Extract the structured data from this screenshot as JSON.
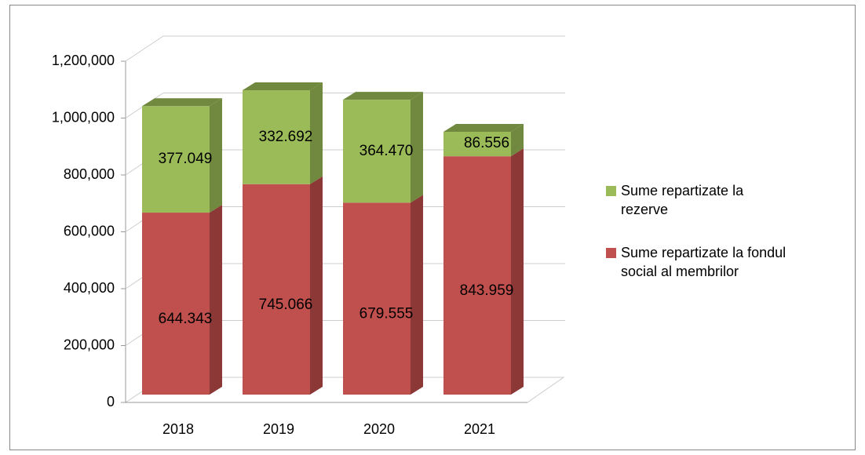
{
  "chart_data": {
    "type": "bar3d_stacked",
    "categories": [
      "2018",
      "2019",
      "2020",
      "2021"
    ],
    "series": [
      {
        "name": "Sume repartizate la fondul social al membrilor",
        "color": "#c0504d",
        "side_color": "#8c3836",
        "values": [
          644343,
          745066,
          679555,
          843959
        ],
        "value_labels": [
          "644.343",
          "745.066",
          "679.555",
          "843.959"
        ]
      },
      {
        "name": "Sume repartizate la rezerve",
        "color": "#9bbb59",
        "side_color": "#71893f",
        "values": [
          377049,
          332692,
          364470,
          86556
        ],
        "value_labels": [
          "377.049",
          "332.692",
          "364.470",
          "86.556"
        ]
      }
    ],
    "ylim": [
      0,
      1200000
    ],
    "yticks": [
      0,
      {
        "value": 200000,
        "label": "200,000"
      },
      {
        "value": 400000,
        "label": "400,000"
      },
      {
        "value": 600000,
        "label": "600,000"
      },
      {
        "value": 800000,
        "label": "800,000"
      },
      {
        "value": 1000000,
        "label": "1,000,000"
      },
      {
        "value": 1200000,
        "label": "1,200,000"
      }
    ],
    "grid": true,
    "legend": "right"
  }
}
